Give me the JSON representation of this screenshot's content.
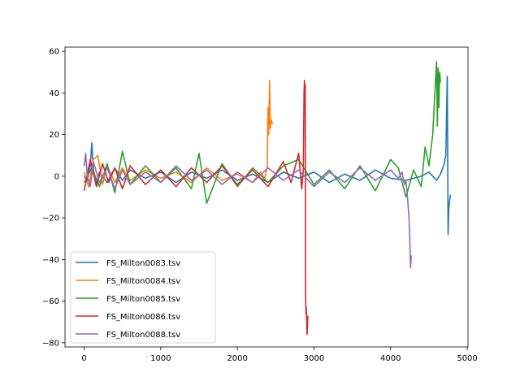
{
  "chart_data": {
    "type": "line",
    "title": "",
    "xlabel": "",
    "ylabel": "",
    "xlim": [
      -250,
      5010
    ],
    "ylim": [
      -82,
      62
    ],
    "xticks": [
      0,
      1000,
      2000,
      3000,
      4000,
      5000
    ],
    "yticks": [
      -80,
      -60,
      -40,
      -20,
      0,
      20,
      40,
      60
    ],
    "xtick_labels": [
      "0",
      "1000",
      "2000",
      "3000",
      "4000",
      "5000"
    ],
    "ytick_labels": [
      "−80",
      "−60",
      "−40",
      "−20",
      "0",
      "20",
      "40",
      "60"
    ],
    "grid": false,
    "legend_position": "lower-left",
    "series": [
      {
        "name": "FS_Milton0083.tsv",
        "color": "#1f77b4",
        "x": [
          0,
          40,
          80,
          100,
          120,
          160,
          200,
          300,
          400,
          500,
          600,
          800,
          1000,
          1200,
          1400,
          1600,
          1800,
          2000,
          2200,
          2400,
          2600,
          2800,
          3000,
          3200,
          3400,
          3600,
          3800,
          4000,
          4200,
          4400,
          4500,
          4600,
          4650,
          4700,
          4720,
          4740,
          4750,
          4760,
          4780
        ],
        "y": [
          0,
          -2,
          5,
          16,
          3,
          -4,
          2,
          -3,
          4,
          -2,
          3,
          -1,
          2,
          -3,
          2,
          -1,
          3,
          -2,
          1,
          -3,
          2,
          -1,
          2,
          -3,
          1,
          -2,
          3,
          -1,
          -2,
          0,
          2,
          -2,
          1,
          6,
          10,
          48,
          -28,
          -15,
          -9
        ]
      },
      {
        "name": "FS_Milton0084.tsv",
        "color": "#ff7f0e",
        "x": [
          0,
          60,
          120,
          180,
          240,
          300,
          400,
          500,
          600,
          800,
          1000,
          1200,
          1400,
          1600,
          1800,
          2000,
          2200,
          2300,
          2360,
          2390,
          2400,
          2410,
          2420,
          2430,
          2440,
          2460
        ],
        "y": [
          2,
          -5,
          8,
          10,
          -4,
          5,
          -3,
          4,
          -2,
          3,
          -1,
          2,
          -3,
          4,
          -2,
          1,
          -3,
          2,
          -1,
          5,
          33,
          20,
          46,
          23,
          27,
          25
        ]
      },
      {
        "name": "FS_Milton0085.tsv",
        "color": "#2ca02c",
        "x": [
          0,
          100,
          200,
          300,
          400,
          500,
          600,
          800,
          1000,
          1200,
          1400,
          1500,
          1600,
          1800,
          2000,
          2200,
          2400,
          2600,
          2800,
          3000,
          3200,
          3400,
          3600,
          3800,
          4000,
          4100,
          4200,
          4300,
          4400,
          4450,
          4500,
          4550,
          4580,
          4600,
          4610,
          4620,
          4630,
          4640,
          4650
        ],
        "y": [
          -3,
          4,
          -5,
          6,
          -8,
          12,
          -4,
          5,
          -3,
          4,
          -6,
          11,
          -13,
          6,
          -5,
          4,
          -3,
          5,
          8,
          -4,
          3,
          -6,
          5,
          -7,
          8,
          4,
          -10,
          3,
          -5,
          14,
          5,
          20,
          42,
          55,
          24,
          52,
          33,
          50,
          45
        ]
      },
      {
        "name": "FS_Milton0086.tsv",
        "color": "#d62728",
        "x": [
          0,
          80,
          160,
          240,
          320,
          400,
          500,
          600,
          800,
          1000,
          1200,
          1400,
          1600,
          1800,
          2000,
          2200,
          2400,
          2600,
          2700,
          2800,
          2840,
          2860,
          2870,
          2875,
          2880,
          2885,
          2890,
          2895,
          2900,
          2910,
          2920
        ],
        "y": [
          -7,
          8,
          -5,
          6,
          -3,
          4,
          -6,
          5,
          -4,
          3,
          -5,
          4,
          -3,
          5,
          -4,
          3,
          -5,
          7,
          -3,
          11,
          -6,
          3,
          40,
          46,
          38,
          44,
          -57,
          -66,
          -63,
          -76,
          -67
        ]
      },
      {
        "name": "FS_Milton0088.tsv",
        "color": "#9467bd",
        "x": [
          0,
          20,
          40,
          80,
          120,
          200,
          300,
          400,
          500,
          600,
          800,
          1000,
          1200,
          1400,
          1600,
          1800,
          2000,
          2200,
          2400,
          2600,
          2800,
          3000,
          3200,
          3400,
          3600,
          3800,
          4000,
          4100,
          4150,
          4180,
          4200,
          4220,
          4240,
          4250,
          4260,
          4270
        ],
        "y": [
          5,
          11,
          0,
          -5,
          7,
          -3,
          4,
          -6,
          3,
          -4,
          2,
          -3,
          5,
          -2,
          3,
          -4,
          2,
          -3,
          4,
          -2,
          3,
          -5,
          2,
          -3,
          4,
          -2,
          3,
          -1,
          2,
          -4,
          -2,
          -10,
          -20,
          -30,
          -44,
          -38
        ]
      }
    ]
  }
}
